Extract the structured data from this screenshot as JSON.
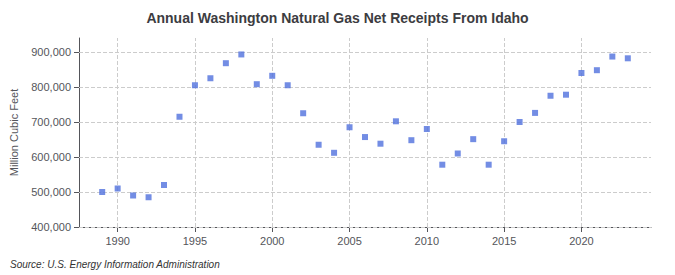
{
  "chart_data": {
    "type": "scatter",
    "title": "Annual Washington Natural Gas Net Receipts From Idaho",
    "ylabel": "Million Cubic Feet",
    "source": "Source: U.S. Energy Information Administration",
    "x": [
      1989,
      1990,
      1991,
      1992,
      1993,
      1994,
      1995,
      1996,
      1997,
      1998,
      1999,
      2000,
      2001,
      2002,
      2003,
      2004,
      2005,
      2006,
      2007,
      2008,
      2009,
      2010,
      2011,
      2012,
      2013,
      2014,
      2015,
      2016,
      2017,
      2018,
      2019,
      2020,
      2021,
      2022,
      2023
    ],
    "values": [
      500000,
      510000,
      490000,
      485000,
      520000,
      715000,
      805000,
      825000,
      868000,
      893000,
      808000,
      832000,
      805000,
      725000,
      635000,
      612000,
      685000,
      657000,
      638000,
      702000,
      648000,
      680000,
      578000,
      610000,
      651000,
      578000,
      645000,
      700000,
      726000,
      775000,
      778000,
      840000,
      848000,
      887000,
      882000
    ],
    "marker": "square",
    "xlim": [
      1987.5,
      2024.5
    ],
    "xticks": [
      1990,
      1995,
      2000,
      2005,
      2010,
      2015,
      2020
    ],
    "ylim": [
      400000,
      940000
    ],
    "yticks": [
      {
        "value": 400000,
        "label": "400,000"
      },
      {
        "value": 500000,
        "label": "500,000"
      },
      {
        "value": 600000,
        "label": "600,000"
      },
      {
        "value": 700000,
        "label": "700,000"
      },
      {
        "value": 800000,
        "label": "800,000"
      },
      {
        "value": 900000,
        "label": "900,000"
      }
    ],
    "grid": true
  }
}
